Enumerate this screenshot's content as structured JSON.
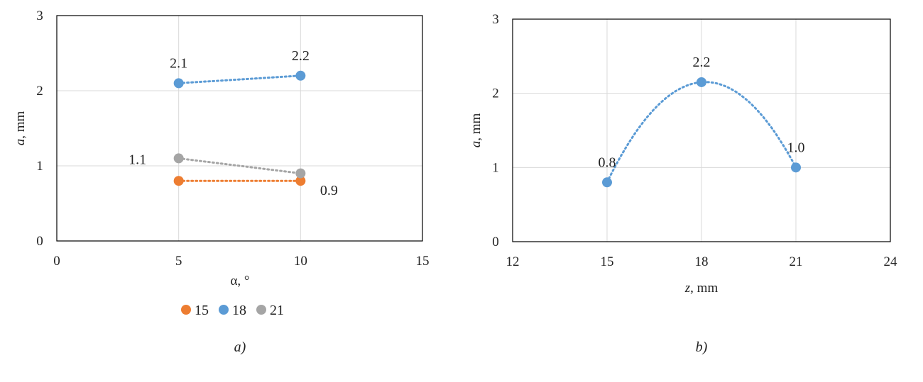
{
  "chart_data": [
    {
      "type": "line",
      "panel_caption": "a)",
      "xlabel": "α, °",
      "ylabel_var": "a",
      "ylabel_unit": ", mm",
      "xlim": [
        0,
        15
      ],
      "ylim": [
        0,
        3
      ],
      "xticks": [
        0,
        5,
        10,
        15
      ],
      "yticks": [
        0,
        1,
        2,
        3
      ],
      "grid": true,
      "legend_position": "bottom",
      "series": [
        {
          "name": "15",
          "color": "#ED7D31",
          "x": [
            5,
            10
          ],
          "y": [
            0.8,
            0.8
          ],
          "line_style": "dotted"
        },
        {
          "name": "18",
          "color": "#5B9BD5",
          "x": [
            5,
            10
          ],
          "y": [
            2.1,
            2.2
          ],
          "line_style": "dotted"
        },
        {
          "name": "21",
          "color": "#A5A5A5",
          "x": [
            5,
            10
          ],
          "y": [
            1.1,
            0.9
          ],
          "line_style": "dotted"
        }
      ],
      "annotations": [
        {
          "text": "2.1",
          "x": 5,
          "y": 2.1,
          "pos": "above"
        },
        {
          "text": "2.2",
          "x": 10,
          "y": 2.2,
          "pos": "above"
        },
        {
          "text": "1.1",
          "x": 5,
          "y": 1.1,
          "pos": "left"
        },
        {
          "text": "0.9",
          "x": 10,
          "y": 0.8,
          "pos": "below-right"
        }
      ]
    },
    {
      "type": "scatter",
      "panel_caption": "b)",
      "xlabel_var": "z",
      "xlabel_unit": ", mm",
      "ylabel_var": "a",
      "ylabel_unit": ", mm",
      "xlim": [
        12,
        24
      ],
      "ylim": [
        0,
        3
      ],
      "xticks": [
        12,
        15,
        18,
        21,
        24
      ],
      "yticks": [
        0,
        1,
        2,
        3
      ],
      "grid": true,
      "series": [
        {
          "color": "#5B9BD5",
          "x": [
            15,
            18,
            21
          ],
          "y": [
            0.8,
            2.15,
            1.0
          ],
          "trendline": "polynomial-dotted"
        }
      ],
      "annotations": [
        {
          "text": "0.8",
          "x": 15,
          "y": 0.8,
          "pos": "above"
        },
        {
          "text": "2.2",
          "x": 18,
          "y": 2.15,
          "pos": "above"
        },
        {
          "text": "1.0",
          "x": 21,
          "y": 1.0,
          "pos": "above"
        }
      ]
    }
  ]
}
